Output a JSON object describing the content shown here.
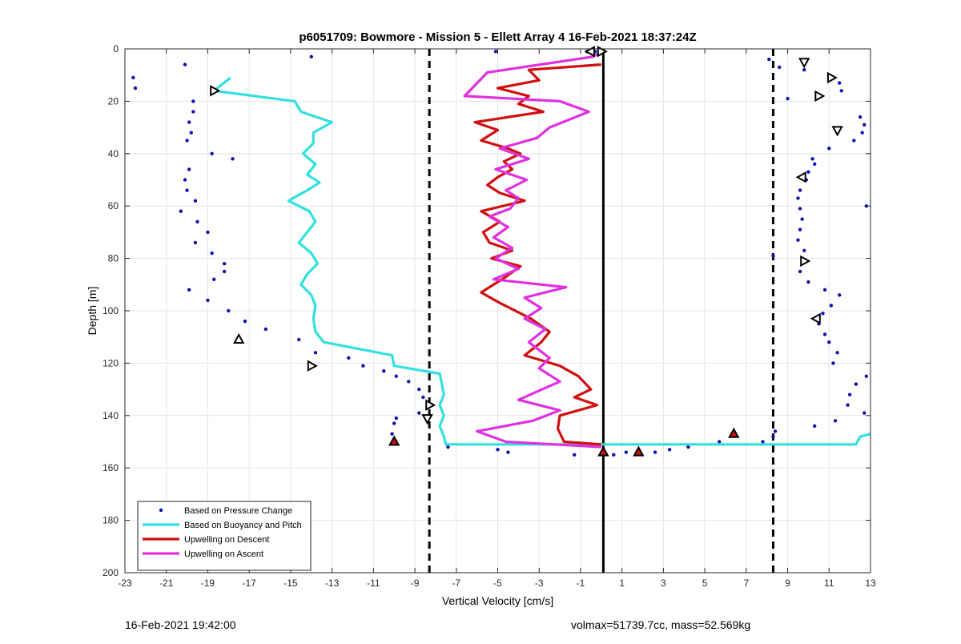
{
  "chart_data": {
    "type": "scatter",
    "title": "p6051709: Bowmore - Mission 5 - Ellett Array 4 16-Feb-2021 18:37:24Z",
    "xlabel": "Vertical Velocity [cm/s]",
    "ylabel": "Depth [m]",
    "xlim": [
      -23,
      13
    ],
    "ylim": [
      0,
      200
    ],
    "y_reversed": true,
    "grid": true,
    "legend_position": "bottom-left",
    "x_ticks": [
      -23,
      -21,
      -19,
      -17,
      -15,
      -13,
      -11,
      -9,
      -7,
      -5,
      -3,
      -1,
      1,
      3,
      5,
      7,
      9,
      11,
      13
    ],
    "y_ticks": [
      0,
      20,
      40,
      60,
      80,
      100,
      120,
      140,
      160,
      180,
      200
    ],
    "reference_lines": [
      {
        "x": -8.3,
        "style": "dashed",
        "color": "#000000"
      },
      {
        "x": 0.1,
        "style": "solid",
        "color": "#000000"
      },
      {
        "x": 8.3,
        "style": "dashed",
        "color": "#000000"
      }
    ],
    "series": [
      {
        "name": "Based on Pressure Change",
        "type": "scatter",
        "color": "#1010b0",
        "points": [
          [
            -22.6,
            11
          ],
          [
            -22.5,
            15
          ],
          [
            -20.1,
            6
          ],
          [
            -14.0,
            3
          ],
          [
            -19.7,
            20
          ],
          [
            -19.7,
            24
          ],
          [
            -19.9,
            28
          ],
          [
            -19.8,
            32
          ],
          [
            -20.0,
            35
          ],
          [
            -18.8,
            40
          ],
          [
            -17.8,
            42
          ],
          [
            -19.9,
            46
          ],
          [
            -20.1,
            50
          ],
          [
            -20.0,
            54
          ],
          [
            -19.6,
            58
          ],
          [
            -20.3,
            62
          ],
          [
            -19.5,
            66
          ],
          [
            -19.0,
            70
          ],
          [
            -19.6,
            74
          ],
          [
            -18.8,
            78
          ],
          [
            -18.2,
            82
          ],
          [
            -18.2,
            85
          ],
          [
            -18.7,
            88
          ],
          [
            -19.9,
            92
          ],
          [
            -19.0,
            96
          ],
          [
            -18.0,
            100
          ],
          [
            -17.2,
            104
          ],
          [
            -16.2,
            107
          ],
          [
            -14.6,
            111
          ],
          [
            -13.8,
            116
          ],
          [
            -12.2,
            118
          ],
          [
            -11.5,
            121
          ],
          [
            -10.5,
            123
          ],
          [
            -9.9,
            125
          ],
          [
            -9.3,
            127
          ],
          [
            -8.8,
            130
          ],
          [
            -8.6,
            133
          ],
          [
            -8.2,
            136
          ],
          [
            -8.8,
            139
          ],
          [
            -9.9,
            141
          ],
          [
            -10.0,
            143
          ],
          [
            -10.1,
            147
          ],
          [
            -10.0,
            150
          ],
          [
            -7.4,
            152
          ],
          [
            -5.0,
            153
          ],
          [
            -4.5,
            154
          ],
          [
            -1.3,
            155
          ],
          [
            0.6,
            155
          ],
          [
            1.2,
            154
          ],
          [
            2.6,
            154
          ],
          [
            3.3,
            153
          ],
          [
            4.2,
            152
          ],
          [
            5.7,
            150
          ],
          [
            7.8,
            150
          ],
          [
            8.3,
            148
          ],
          [
            8.4,
            146
          ],
          [
            -0.7,
            1
          ],
          [
            -0.3,
            1
          ],
          [
            -5.1,
            1
          ],
          [
            8.1,
            4
          ],
          [
            8.6,
            7
          ],
          [
            9.8,
            8
          ],
          [
            11.5,
            13
          ],
          [
            11.6,
            16
          ],
          [
            10.6,
            18
          ],
          [
            9.0,
            19
          ],
          [
            12.5,
            26
          ],
          [
            12.7,
            29
          ],
          [
            12.6,
            32
          ],
          [
            12.2,
            35
          ],
          [
            11.0,
            38
          ],
          [
            10.2,
            42
          ],
          [
            10.3,
            44
          ],
          [
            10.0,
            47
          ],
          [
            9.9,
            50
          ],
          [
            9.6,
            54
          ],
          [
            9.5,
            57
          ],
          [
            9.6,
            61
          ],
          [
            9.7,
            65
          ],
          [
            9.6,
            69
          ],
          [
            9.5,
            73
          ],
          [
            9.8,
            77
          ],
          [
            9.9,
            81
          ],
          [
            9.6,
            85
          ],
          [
            10.0,
            89
          ],
          [
            10.8,
            92
          ],
          [
            11.5,
            94
          ],
          [
            11.1,
            98
          ],
          [
            10.7,
            101
          ],
          [
            10.5,
            105
          ],
          [
            10.8,
            109
          ],
          [
            11.0,
            112
          ],
          [
            11.4,
            116
          ],
          [
            11.2,
            120
          ],
          [
            12.8,
            125
          ],
          [
            12.3,
            128
          ],
          [
            12.0,
            132
          ],
          [
            11.9,
            136
          ],
          [
            12.7,
            139
          ],
          [
            11.3,
            142
          ],
          [
            10.3,
            144
          ],
          [
            8.3,
            79
          ],
          [
            12.8,
            60
          ]
        ]
      },
      {
        "name": "Based on Buoyancy and Pitch",
        "type": "line",
        "color": "#33e0e0",
        "points": [
          [
            -17.9,
            11
          ],
          [
            -18.7,
            16
          ],
          [
            -14.8,
            20
          ],
          [
            -14.5,
            24
          ],
          [
            -13.0,
            28
          ],
          [
            -13.9,
            32
          ],
          [
            -13.9,
            36
          ],
          [
            -14.4,
            40
          ],
          [
            -13.8,
            44
          ],
          [
            -14.2,
            48
          ],
          [
            -13.6,
            51
          ],
          [
            -14.2,
            54
          ],
          [
            -15.1,
            58
          ],
          [
            -14.1,
            62
          ],
          [
            -13.8,
            66
          ],
          [
            -14.2,
            70
          ],
          [
            -14.6,
            74
          ],
          [
            -14.0,
            78
          ],
          [
            -13.7,
            82
          ],
          [
            -14.2,
            86
          ],
          [
            -14.5,
            90
          ],
          [
            -14.0,
            94
          ],
          [
            -13.8,
            98
          ],
          [
            -13.9,
            103
          ],
          [
            -13.8,
            108
          ],
          [
            -13.4,
            112
          ],
          [
            -10.1,
            117
          ],
          [
            -10.0,
            121
          ],
          [
            -7.8,
            124
          ],
          [
            -7.7,
            128
          ],
          [
            -7.6,
            132
          ],
          [
            -7.8,
            136
          ],
          [
            -7.6,
            140
          ],
          [
            -7.8,
            144
          ],
          [
            -7.6,
            148
          ],
          [
            -7.5,
            151
          ],
          [
            12.3,
            151
          ],
          [
            12.5,
            148
          ],
          [
            13.0,
            147
          ]
        ]
      },
      {
        "name": "Upwelling on Descent",
        "type": "line",
        "color": "#d01010",
        "points": [
          [
            0.0,
            6
          ],
          [
            -3.5,
            8
          ],
          [
            -3.0,
            12
          ],
          [
            -5.0,
            15
          ],
          [
            -3.5,
            18
          ],
          [
            -4.0,
            21
          ],
          [
            -2.8,
            24
          ],
          [
            -6.1,
            28
          ],
          [
            -5.0,
            31
          ],
          [
            -5.8,
            35
          ],
          [
            -4.5,
            38
          ],
          [
            -3.9,
            40
          ],
          [
            -4.7,
            43
          ],
          [
            -4.3,
            46
          ],
          [
            -5.0,
            49
          ],
          [
            -5.5,
            52
          ],
          [
            -4.9,
            55
          ],
          [
            -3.7,
            58
          ],
          [
            -5.8,
            62
          ],
          [
            -4.9,
            66
          ],
          [
            -5.7,
            70
          ],
          [
            -5.4,
            74
          ],
          [
            -4.3,
            77
          ],
          [
            -5.3,
            80
          ],
          [
            -3.9,
            83
          ],
          [
            -4.6,
            87
          ],
          [
            -5.8,
            93
          ],
          [
            -4.9,
            97
          ],
          [
            -3.4,
            103
          ],
          [
            -2.5,
            108
          ],
          [
            -2.9,
            112
          ],
          [
            -3.7,
            117
          ],
          [
            -2.0,
            121
          ],
          [
            -1.1,
            125
          ],
          [
            -0.5,
            130
          ],
          [
            -1.3,
            133
          ],
          [
            -0.2,
            136
          ],
          [
            -2.0,
            140
          ],
          [
            -2.1,
            145
          ],
          [
            -1.8,
            150
          ],
          [
            0.0,
            151
          ]
        ]
      },
      {
        "name": "Upwelling on Ascent",
        "type": "line",
        "color": "#e030e0",
        "points": [
          [
            0.0,
            1
          ],
          [
            -0.4,
            3
          ],
          [
            -5.5,
            9
          ],
          [
            -6.6,
            18
          ],
          [
            -2.0,
            20
          ],
          [
            -0.6,
            24
          ],
          [
            -2.5,
            30
          ],
          [
            -3.1,
            34
          ],
          [
            -4.9,
            38
          ],
          [
            -3.5,
            42
          ],
          [
            -5.1,
            46
          ],
          [
            -3.6,
            50
          ],
          [
            -4.6,
            54
          ],
          [
            -4.0,
            57
          ],
          [
            -4.4,
            61
          ],
          [
            -5.4,
            64
          ],
          [
            -4.5,
            68
          ],
          [
            -5.2,
            72
          ],
          [
            -4.3,
            76
          ],
          [
            -5.1,
            80
          ],
          [
            -4.0,
            84
          ],
          [
            -5.2,
            88
          ],
          [
            -1.7,
            91
          ],
          [
            -3.7,
            95
          ],
          [
            -2.9,
            99
          ],
          [
            -3.7,
            103
          ],
          [
            -2.7,
            107
          ],
          [
            -3.5,
            112
          ],
          [
            -2.5,
            118
          ],
          [
            -3.0,
            122
          ],
          [
            -2.0,
            127
          ],
          [
            -4.0,
            134
          ],
          [
            -2.0,
            138
          ],
          [
            -3.3,
            142
          ],
          [
            -6.0,
            146
          ],
          [
            -4.6,
            150
          ],
          [
            0.0,
            152
          ]
        ]
      }
    ],
    "markers": [
      {
        "x": -0.5,
        "y": 1,
        "shape": "triangle-left",
        "fill": "#ffffff"
      },
      {
        "x": 0.0,
        "y": 1,
        "shape": "triangle-right",
        "fill": "#ffffff"
      },
      {
        "x": -18.7,
        "y": 16,
        "shape": "triangle-right",
        "fill": "#ffffff"
      },
      {
        "x": -17.5,
        "y": 111,
        "shape": "triangle-up",
        "fill": "#ffffff"
      },
      {
        "x": -14.0,
        "y": 121,
        "shape": "triangle-right",
        "fill": "#ffffff"
      },
      {
        "x": -8.3,
        "y": 136,
        "shape": "triangle-right",
        "fill": "#ffffff"
      },
      {
        "x": -8.4,
        "y": 141,
        "shape": "triangle-down",
        "fill": "#ffffff"
      },
      {
        "x": 9.8,
        "y": 5,
        "shape": "triangle-down",
        "fill": "#ffffff"
      },
      {
        "x": 11.1,
        "y": 11,
        "shape": "triangle-right",
        "fill": "#ffffff"
      },
      {
        "x": 10.5,
        "y": 18,
        "shape": "triangle-right",
        "fill": "#ffffff"
      },
      {
        "x": 11.4,
        "y": 31,
        "shape": "triangle-down",
        "fill": "#ffffff"
      },
      {
        "x": 9.7,
        "y": 49,
        "shape": "triangle-left",
        "fill": "#ffffff"
      },
      {
        "x": 9.8,
        "y": 81,
        "shape": "triangle-right",
        "fill": "#ffffff"
      },
      {
        "x": 10.4,
        "y": 103,
        "shape": "triangle-left",
        "fill": "#ffffff"
      },
      {
        "x": -10.0,
        "y": 150,
        "shape": "triangle-up",
        "fill": "#d01010"
      },
      {
        "x": 0.1,
        "y": 154,
        "shape": "triangle-up",
        "fill": "#d01010"
      },
      {
        "x": 1.8,
        "y": 154,
        "shape": "triangle-up",
        "fill": "#d01010"
      },
      {
        "x": 6.4,
        "y": 147,
        "shape": "triangle-up",
        "fill": "#d01010"
      }
    ]
  },
  "footer": {
    "timestamp": "16-Feb-2021 19:42:00",
    "info": "volmax=51739.7cc, mass=52.569kg"
  }
}
